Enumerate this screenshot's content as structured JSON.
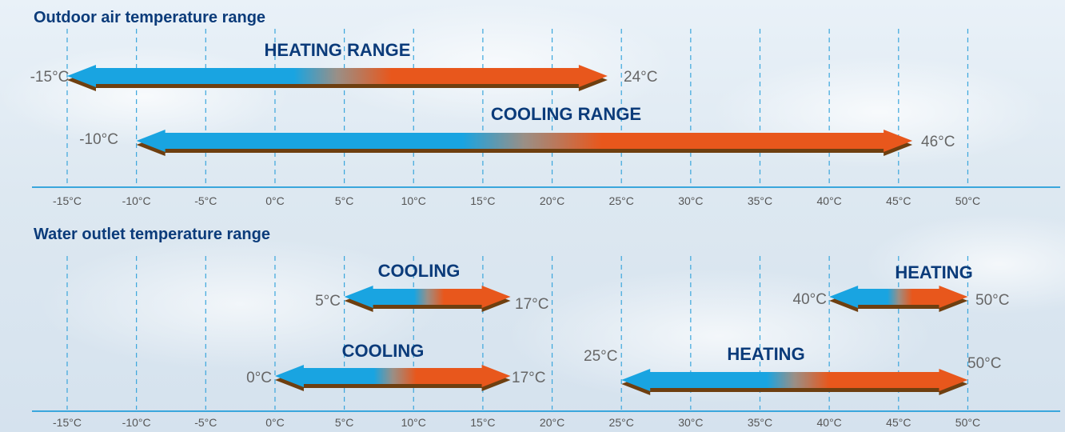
{
  "accent": {
    "cold": "#19a4e1",
    "hot": "#e8571c",
    "mid": "#9a8f86",
    "title": "#0b3b7a",
    "axis": "#3aa6dc",
    "shadow": "#6e3f10"
  },
  "axis_ticks": [
    "-15°C",
    "-10°C",
    "-5°C",
    "0°C",
    "5°C",
    "10°C",
    "15°C",
    "20°C",
    "25°C",
    "30°C",
    "35°C",
    "40°C",
    "45°C",
    "50°C"
  ],
  "tick_values": [
    -15,
    -10,
    -5,
    0,
    5,
    10,
    15,
    20,
    25,
    30,
    35,
    40,
    45,
    50
  ],
  "outdoor": {
    "title": "Outdoor air temperature range",
    "ranges": [
      {
        "label": "HEATING RANGE",
        "min": -15,
        "max": 24,
        "min_label": "-15°C",
        "max_label": "24°C"
      },
      {
        "label": "COOLING RANGE",
        "min": -10,
        "max": 46,
        "min_label": "-10°C",
        "max_label": "46°C"
      }
    ]
  },
  "water": {
    "title": "Water outlet temperature range",
    "ranges": [
      {
        "label": "COOLING",
        "min": 5,
        "max": 17,
        "min_label": "5°C",
        "max_label": "17°C"
      },
      {
        "label": "HEATING",
        "min": 40,
        "max": 50,
        "min_label": "40°C",
        "max_label": "50°C"
      },
      {
        "label": "COOLING",
        "min": 0,
        "max": 17,
        "min_label": "0°C",
        "max_label": "17°C"
      },
      {
        "label": "HEATING",
        "min": 25,
        "max": 50,
        "min_label": "25°C",
        "max_label": "50°C"
      }
    ]
  }
}
